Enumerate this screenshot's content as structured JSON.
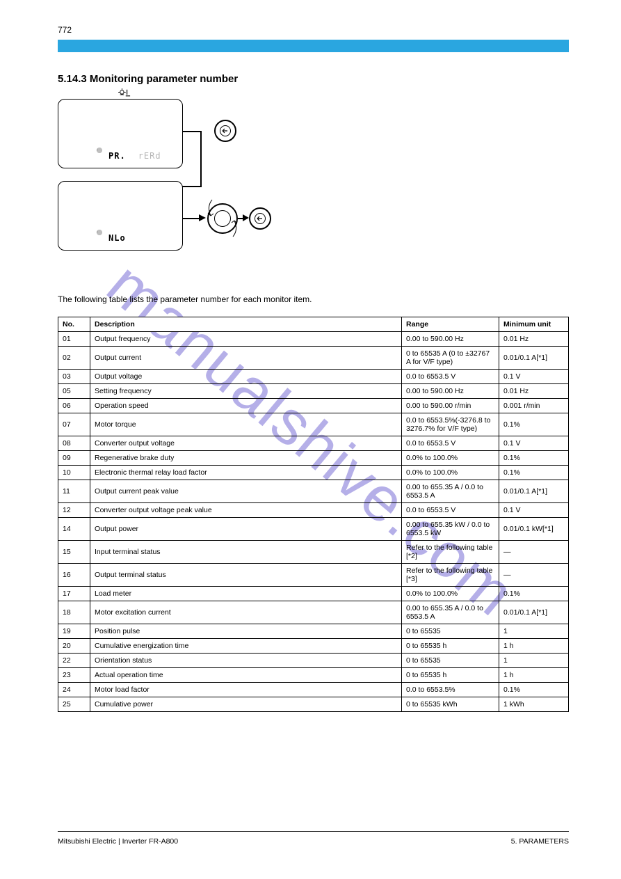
{
  "page_number_top": "772",
  "section_heading": "5.14.3 Monitoring parameter number",
  "intro_text": "The following table lists the parameter number for each monitor item.",
  "diagram": {
    "box1_left": "PR.",
    "box1_right": "rERd",
    "box2_text": "NLo",
    "enter_symbol": "↵"
  },
  "table": {
    "headers": [
      "No.",
      "Description",
      "Range",
      "Minimum unit"
    ],
    "rows": [
      [
        "01",
        "Output frequency",
        "0.00 to 590.00 Hz",
        "0.01 Hz"
      ],
      [
        "02",
        "Output current",
        "0 to 65535 A (0 to ±32767 A for V/F type)",
        "0.01/0.1 A[*1]"
      ],
      [
        "03",
        "Output voltage",
        "0.0 to 6553.5 V",
        "0.1 V"
      ],
      [
        "05",
        "Setting frequency",
        "0.00 to 590.00 Hz",
        "0.01 Hz"
      ],
      [
        "06",
        "Operation speed",
        "0.00 to 590.00 r/min",
        "0.001 r/min"
      ],
      [
        "07",
        "Motor torque",
        "0.0 to 6553.5%(-3276.8 to 3276.7% for V/F type)",
        "0.1%"
      ],
      [
        "08",
        "Converter output voltage",
        "0.0 to 6553.5 V",
        "0.1 V"
      ],
      [
        "09",
        "Regenerative brake duty",
        "0.0% to 100.0%",
        "0.1%"
      ],
      [
        "10",
        "Electronic thermal relay load factor",
        "0.0% to 100.0%",
        "0.1%"
      ],
      [
        "11",
        "Output current peak value",
        "0.00 to 655.35 A / 0.0 to 6553.5 A",
        "0.01/0.1 A[*1]"
      ],
      [
        "12",
        "Converter output voltage peak value",
        "0.0 to 6553.5 V",
        "0.1 V"
      ],
      [
        "14",
        "Output power",
        "0.00 to 655.35 kW / 0.0 to 6553.5 kW",
        "0.01/0.1 kW[*1]"
      ],
      [
        "15",
        "Input terminal status",
        "Refer to the following table [*2]",
        "—"
      ],
      [
        "16",
        "Output terminal status",
        "Refer to the following table [*3]",
        "—"
      ],
      [
        "17",
        "Load meter",
        "0.0% to 100.0%",
        "0.1%"
      ],
      [
        "18",
        "Motor excitation current",
        "0.00 to 655.35 A / 0.0 to 6553.5 A",
        "0.01/0.1 A[*1]"
      ],
      [
        "19",
        "Position pulse",
        "0 to 65535",
        "1"
      ],
      [
        "20",
        "Cumulative energization time",
        "0 to 65535 h",
        "1 h"
      ],
      [
        "22",
        "Orientation status",
        "0 to 65535",
        "1"
      ],
      [
        "23",
        "Actual operation time",
        "0 to 65535 h",
        "1 h"
      ],
      [
        "24",
        "Motor load factor",
        "0.0 to 6553.5%",
        "0.1%"
      ],
      [
        "25",
        "Cumulative power",
        "0 to 65535 kWh",
        "1 kWh"
      ]
    ]
  },
  "footer": {
    "left": "Mitsubishi Electric | Inverter FR-A800",
    "right": "5. PARAMETERS"
  },
  "watermark": "manualshive.com"
}
